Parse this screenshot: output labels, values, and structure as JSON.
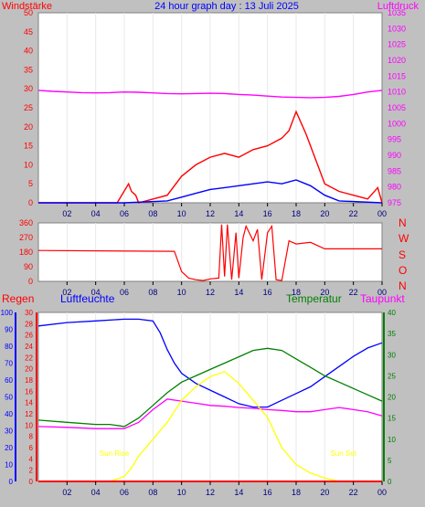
{
  "chart_data": [
    {
      "type": "line",
      "title": "24 hour graph day : 13 Juli 2025",
      "ylabel_left": "Windstärke",
      "ylabel_right": "Luftdruck",
      "ylim_left": [
        0,
        50
      ],
      "ylim_right": [
        975,
        1035
      ],
      "y_ticks_left": [
        0,
        5,
        10,
        15,
        20,
        25,
        30,
        35,
        40,
        45,
        50
      ],
      "y_ticks_right": [
        975,
        980,
        985,
        990,
        995,
        1000,
        1005,
        1010,
        1015,
        1020,
        1025,
        1030,
        1035
      ],
      "x_ticks": [
        "02",
        "04",
        "06",
        "08",
        "10",
        "12",
        "14",
        "16",
        "18",
        "20",
        "22",
        "00"
      ],
      "series": [
        {
          "color": "#ff00ff",
          "axis": "right",
          "x": [
            0,
            1,
            2,
            3,
            4,
            5,
            6,
            7,
            8,
            9,
            10,
            11,
            12,
            13,
            14,
            15,
            16,
            17,
            18,
            19,
            20,
            21,
            22,
            23,
            24
          ],
          "values": [
            1010.5,
            1010.2,
            1010.0,
            1009.8,
            1009.7,
            1009.8,
            1010.0,
            1009.9,
            1009.7,
            1009.5,
            1009.4,
            1009.5,
            1009.6,
            1009.5,
            1009.2,
            1009.0,
            1008.7,
            1008.4,
            1008.3,
            1008.2,
            1008.3,
            1008.6,
            1009.2,
            1010.0,
            1010.5
          ]
        },
        {
          "color": "#ff0000",
          "axis": "left",
          "x": [
            0,
            5.5,
            6.3,
            6.5,
            6.8,
            7,
            9,
            10,
            11,
            12,
            13,
            14,
            15,
            16,
            17,
            17.5,
            18,
            18.7,
            19,
            19.5,
            20,
            21,
            22,
            23,
            23.7,
            24
          ],
          "values": [
            0,
            0,
            5,
            3,
            2,
            0,
            2,
            7,
            10,
            12,
            13,
            12,
            14,
            15,
            17,
            19,
            24,
            18,
            15,
            10,
            5,
            3,
            2,
            1,
            4,
            0
          ]
        },
        {
          "color": "#0000ff",
          "axis": "left",
          "x": [
            0,
            6,
            9,
            10,
            11,
            12,
            13,
            14,
            15,
            16,
            17,
            18,
            19,
            20,
            21,
            24
          ],
          "values": [
            0,
            0,
            0.5,
            1.5,
            2.5,
            3.5,
            4,
            4.5,
            5,
            5.5,
            5,
            6,
            4.5,
            2,
            0.5,
            0
          ]
        }
      ]
    },
    {
      "type": "line",
      "compass_labels": [
        "N",
        "W",
        "S",
        "O",
        "N"
      ],
      "ylim": [
        0,
        360
      ],
      "y_ticks": [
        0,
        90,
        180,
        270,
        360
      ],
      "x_ticks": [
        "02",
        "04",
        "06",
        "08",
        "10",
        "12",
        "14",
        "16",
        "18",
        "20",
        "22",
        "00"
      ],
      "series": [
        {
          "color": "#ff0000",
          "x": [
            0,
            9.5,
            10,
            10.5,
            11,
            11.5,
            12,
            12.6,
            12.8,
            13,
            13.2,
            13.5,
            13.8,
            14,
            14.3,
            14.5,
            15,
            15.3,
            15.6,
            16,
            16.3,
            16.6,
            17,
            17.5,
            18,
            19,
            20,
            21,
            22,
            24
          ],
          "values": [
            190,
            185,
            60,
            20,
            10,
            5,
            15,
            20,
            350,
            30,
            350,
            10,
            300,
            20,
            270,
            340,
            250,
            320,
            10,
            300,
            340,
            10,
            5,
            250,
            230,
            240,
            200,
            200,
            200,
            200
          ]
        }
      ]
    },
    {
      "type": "line",
      "labels": {
        "rain": "Regen",
        "humidity": "Luftfeuchte",
        "temperature": "Temperatur",
        "dewpoint": "Taupunkt"
      },
      "annotations": [
        {
          "text": "Sun Rise",
          "x": 5.3
        },
        {
          "text": "Sun Set",
          "x": 21.3
        }
      ],
      "axes": {
        "humidity": {
          "range": [
            0,
            100
          ],
          "ticks": [
            0,
            10,
            20,
            30,
            40,
            50,
            60,
            70,
            80,
            90,
            100
          ]
        },
        "rain": {
          "range": [
            0,
            30
          ],
          "ticks": [
            0,
            2,
            4,
            6,
            8,
            10,
            12,
            14,
            16,
            18,
            20,
            22,
            24,
            26,
            28,
            30
          ]
        },
        "temperature": {
          "range": [
            0,
            40
          ],
          "ticks": [
            0,
            5,
            10,
            15,
            20,
            25,
            30,
            35,
            40
          ]
        }
      },
      "x_ticks": [
        "02",
        "04",
        "06",
        "08",
        "10",
        "12",
        "14",
        "16",
        "18",
        "20",
        "22",
        "00"
      ],
      "series": [
        {
          "color": "#0000ff",
          "axis": "humidity",
          "x": [
            0,
            2,
            4,
            6,
            7,
            8,
            8.5,
            9,
            9.5,
            10,
            11,
            12,
            13,
            14,
            15,
            16,
            17,
            18,
            19,
            20,
            21,
            22,
            23,
            24
          ],
          "values": [
            92,
            94,
            95,
            96,
            96,
            95,
            88,
            78,
            70,
            64,
            58,
            54,
            50,
            46,
            44,
            44,
            48,
            52,
            56,
            62,
            68,
            74,
            79,
            82
          ]
        },
        {
          "color": "#008000",
          "axis": "temperature",
          "x": [
            0,
            2,
            4,
            5,
            6,
            7,
            8,
            9,
            10,
            11,
            12,
            13,
            14,
            15,
            16,
            17,
            18,
            19,
            20,
            21,
            22,
            23,
            24
          ],
          "values": [
            14.5,
            14,
            13.5,
            13.5,
            13,
            15,
            18,
            21,
            23.5,
            25,
            26.5,
            28,
            29.5,
            31,
            31.5,
            31,
            29,
            27,
            25,
            23.5,
            22,
            20.5,
            19
          ]
        },
        {
          "color": "#ff00ff",
          "axis": "temperature",
          "x": [
            0,
            2,
            4,
            5,
            6,
            7,
            8,
            9,
            10,
            11,
            12,
            13,
            14,
            15,
            16,
            17,
            18,
            19,
            20,
            21,
            22,
            23,
            24
          ],
          "values": [
            13,
            12.8,
            12.5,
            12.5,
            12.5,
            14,
            17,
            19.5,
            19,
            18.5,
            18,
            17.8,
            17.5,
            17.3,
            17,
            16.8,
            16.5,
            16.5,
            17,
            17.5,
            17,
            16.5,
            15.5
          ]
        },
        {
          "color": "#ffff00",
          "axis": "humidity",
          "x": [
            0,
            5,
            6,
            6.5,
            7,
            8,
            9,
            10,
            11,
            12,
            13,
            14,
            15,
            16,
            17,
            18,
            19,
            20,
            21,
            22,
            24
          ],
          "values": [
            0,
            0,
            3,
            8,
            15,
            25,
            35,
            48,
            56,
            62,
            65,
            58,
            48,
            38,
            20,
            10,
            5,
            2,
            0,
            0,
            0
          ]
        },
        {
          "color": "#ff0000",
          "axis": "rain",
          "x": [
            0,
            24
          ],
          "values": [
            0,
            0
          ]
        }
      ]
    }
  ]
}
